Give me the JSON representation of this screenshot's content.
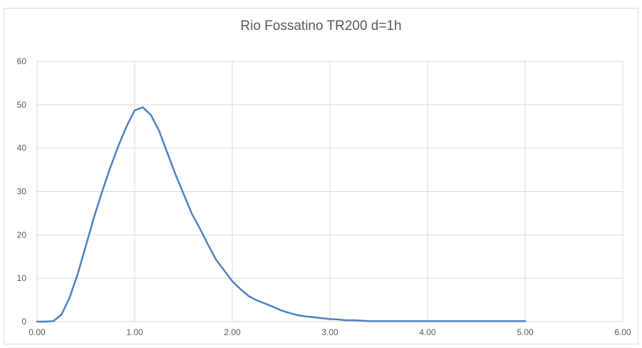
{
  "chart_data": {
    "type": "line",
    "title": "Rio Fossatino TR200 d=1h",
    "xlabel": "",
    "ylabel": "",
    "xlim": [
      0,
      6
    ],
    "ylim": [
      0,
      60
    ],
    "x_ticks": [
      "0.00",
      "1.00",
      "2.00",
      "3.00",
      "4.00",
      "5.00",
      "6.00"
    ],
    "y_ticks": [
      "0",
      "10",
      "20",
      "30",
      "40",
      "50",
      "60"
    ],
    "grid": true,
    "line_color": "#4f81bd",
    "series": [
      {
        "x": [
          0.0,
          0.083,
          0.167,
          0.25,
          0.333,
          0.417,
          0.5,
          0.583,
          0.667,
          0.75,
          0.833,
          0.917,
          1.0,
          1.083,
          1.167,
          1.25,
          1.333,
          1.417,
          1.5,
          1.583,
          1.667,
          1.75,
          1.833,
          1.917,
          2.0,
          2.083,
          2.167,
          2.25,
          2.333,
          2.417,
          2.5,
          2.583,
          2.667,
          2.75,
          2.833,
          2.917,
          3.0,
          3.083,
          3.167,
          3.25,
          3.333,
          3.417,
          3.5,
          3.667,
          3.833,
          4.0,
          4.167,
          4.333,
          4.5,
          4.667,
          4.833,
          5.0
        ],
        "y": [
          0.0,
          0.0,
          0.1,
          1.6,
          5.5,
          11.0,
          17.5,
          24.0,
          30.0,
          35.5,
          40.5,
          45.0,
          48.7,
          49.4,
          47.6,
          44.0,
          39.0,
          34.0,
          29.5,
          25.0,
          21.5,
          17.8,
          14.3,
          11.8,
          9.3,
          7.5,
          5.9,
          4.9,
          4.2,
          3.4,
          2.6,
          2.0,
          1.5,
          1.2,
          1.0,
          0.8,
          0.6,
          0.5,
          0.3,
          0.3,
          0.2,
          0.1,
          0.1,
          0.1,
          0.1,
          0.1,
          0.1,
          0.1,
          0.1,
          0.1,
          0.1,
          0.1
        ]
      }
    ]
  }
}
